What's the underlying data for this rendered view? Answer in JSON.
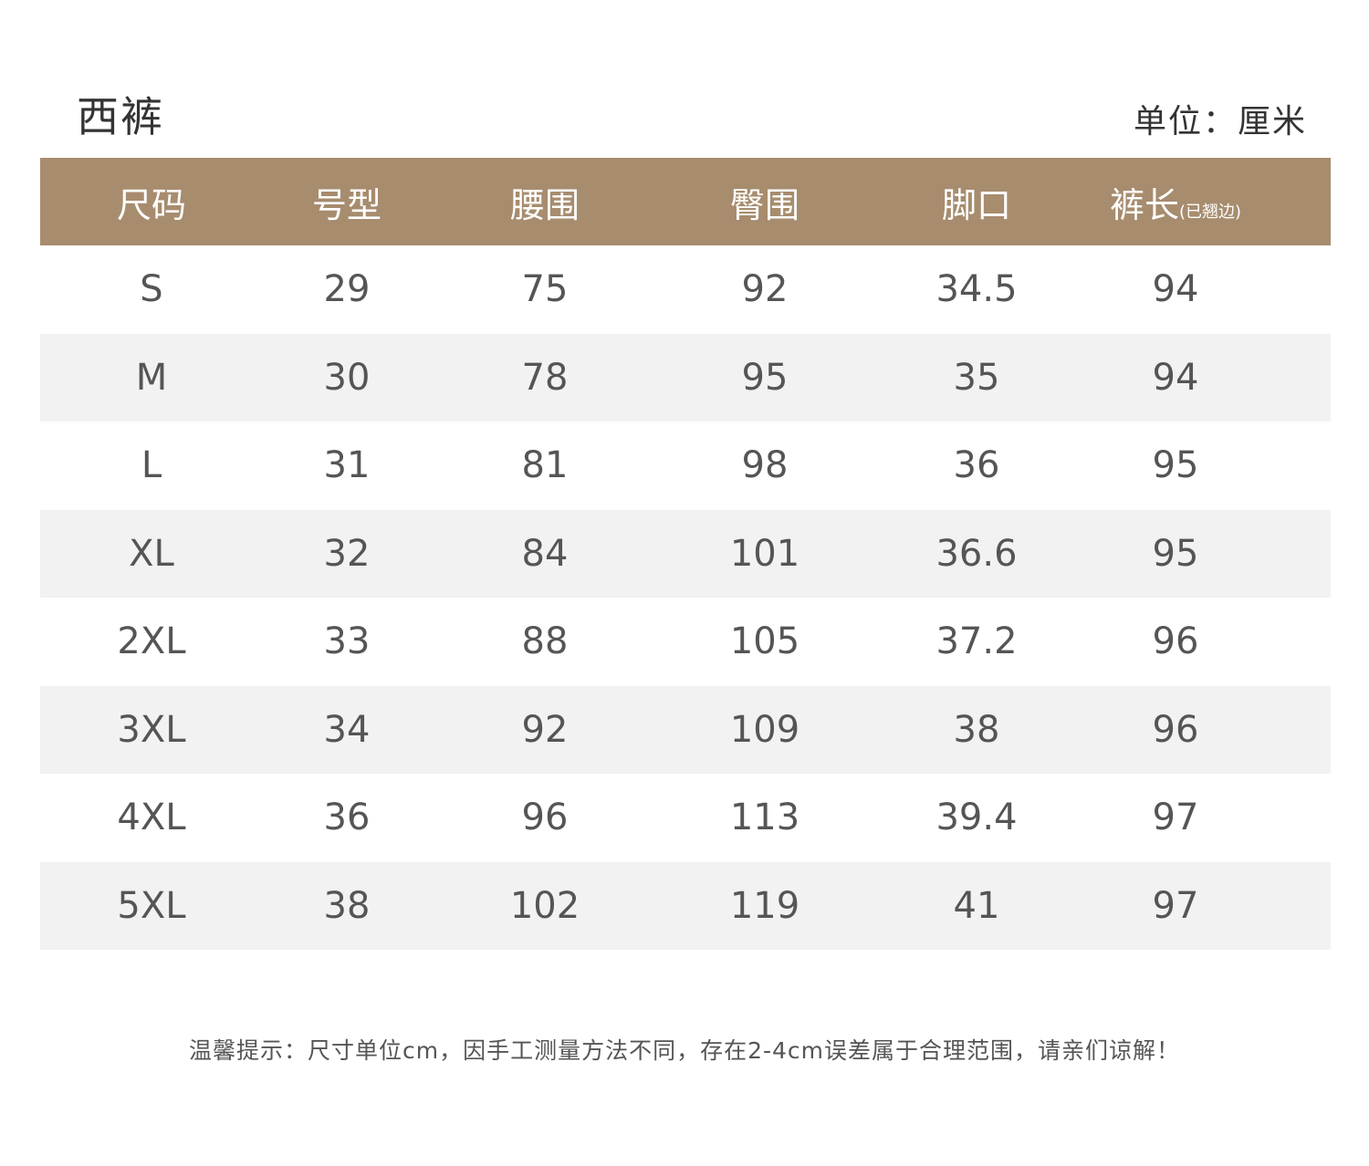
{
  "title": "西裤",
  "unit_label": "单位：厘米",
  "table": {
    "headers": [
      "尺码",
      "号型",
      "腰围",
      "臀围",
      "脚口",
      "裤长"
    ],
    "header_note": "(已翘边)",
    "rows": [
      [
        "S",
        "29",
        "75",
        "92",
        "34.5",
        "94"
      ],
      [
        "M",
        "30",
        "78",
        "95",
        "35",
        "94"
      ],
      [
        "L",
        "31",
        "81",
        "98",
        "36",
        "95"
      ],
      [
        "XL",
        "32",
        "84",
        "101",
        "36.6",
        "95"
      ],
      [
        "2XL",
        "33",
        "88",
        "105",
        "37.2",
        "96"
      ],
      [
        "3XL",
        "34",
        "92",
        "109",
        "38",
        "96"
      ],
      [
        "4XL",
        "36",
        "96",
        "113",
        "39.4",
        "97"
      ],
      [
        "5XL",
        "38",
        "102",
        "119",
        "41",
        "97"
      ]
    ]
  },
  "footer_note": "温馨提示：尺寸单位cm，因手工测量方法不同，存在2-4cm误差属于合理范围，请亲们谅解！",
  "colors": {
    "header_bg": "#a78c6e",
    "alt_row_bg": "#f2f2f2"
  }
}
